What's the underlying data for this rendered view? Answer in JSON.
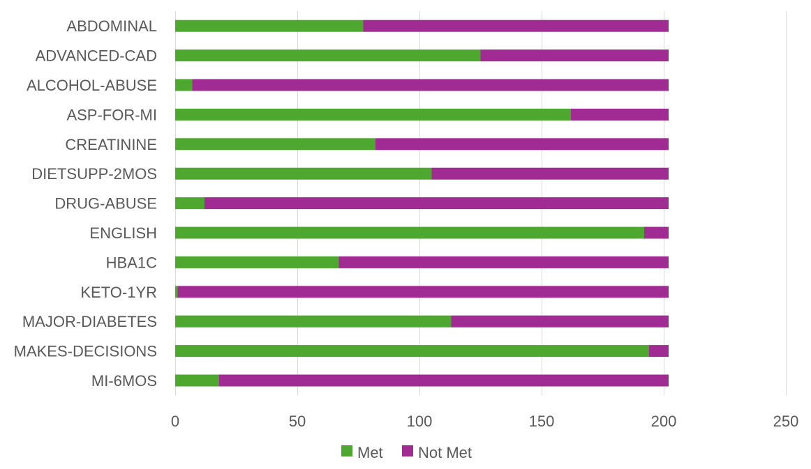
{
  "chart_data": {
    "type": "bar",
    "orientation": "horizontal",
    "stacked": true,
    "categories": [
      "ABDOMINAL",
      "ADVANCED-CAD",
      "ALCOHOL-ABUSE",
      "ASP-FOR-MI",
      "CREATININE",
      "DIETSUPP-2MOS",
      "DRUG-ABUSE",
      "ENGLISH",
      "HBA1C",
      "KETO-1YR",
      "MAJOR-DIABETES",
      "MAKES-DECISIONS",
      "MI-6MOS"
    ],
    "series": [
      {
        "name": "Met",
        "color": "#4ea72e",
        "values": [
          77,
          125,
          7,
          162,
          82,
          105,
          12,
          192,
          67,
          1,
          113,
          194,
          18
        ]
      },
      {
        "name": "Not Met",
        "color": "#a02b93",
        "values": [
          125,
          77,
          195,
          40,
          120,
          97,
          190,
          10,
          135,
          201,
          89,
          8,
          184
        ]
      }
    ],
    "xlim": [
      0,
      250
    ],
    "xticks": [
      0,
      50,
      100,
      150,
      200,
      250
    ],
    "xtick_labels": [
      "0",
      "50",
      "100",
      "150",
      "200",
      "250"
    ],
    "grid": true,
    "legend_position": "bottom"
  }
}
